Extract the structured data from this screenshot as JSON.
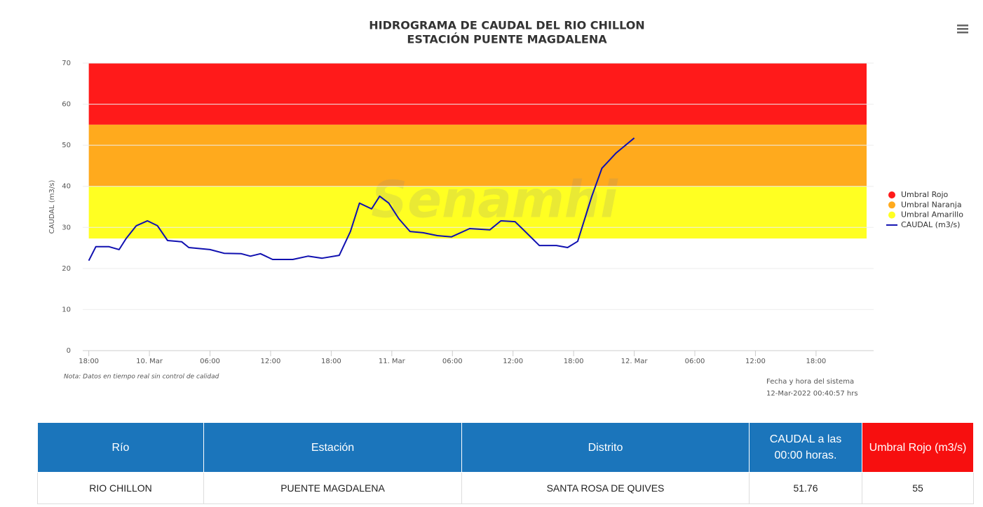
{
  "chart_data": {
    "type": "line",
    "title": [
      "HIDROGRAMA DE CAUDAL DEL RIO CHILLON",
      "ESTACIÓN PUENTE MAGDALENA"
    ],
    "y_label": "CAUDAL (m3/s)",
    "watermark": "Senamhi",
    "note": "Nota: Datos en tiempo real sin control de calidad",
    "timestamp_label": "Fecha y hora del sistema",
    "timestamp": "12-Mar-2022 00:40:57 hrs",
    "xlim": [
      -0.6,
      77.7
    ],
    "xticks": [
      {
        "value": 0,
        "label": "18:00"
      },
      {
        "value": 6,
        "label": "10. Mar"
      },
      {
        "value": 12,
        "label": "06:00"
      },
      {
        "value": 18,
        "label": "12:00"
      },
      {
        "value": 24,
        "label": "18:00"
      },
      {
        "value": 30,
        "label": "11. Mar"
      },
      {
        "value": 36,
        "label": "06:00"
      },
      {
        "value": 42,
        "label": "12:00"
      },
      {
        "value": 48,
        "label": "18:00"
      },
      {
        "value": 54,
        "label": "12. Mar"
      },
      {
        "value": 60,
        "label": "06:00"
      },
      {
        "value": 66,
        "label": "12:00"
      },
      {
        "value": 72,
        "label": "18:00"
      }
    ],
    "ylim": [
      0,
      70
    ],
    "yticks": [
      0,
      10,
      20,
      30,
      40,
      50,
      60,
      70
    ],
    "grid": true,
    "legend": "right",
    "bands": [
      {
        "name": "Umbral Rojo",
        "color": "#ff1a1a",
        "from": 55,
        "to": 70
      },
      {
        "name": "Umbral Naranja",
        "color": "#ffaa1d",
        "from": 40,
        "to": 55
      },
      {
        "name": "Umbral Amarillo",
        "color": "#ffff22",
        "from": 27.3,
        "to": 40
      }
    ],
    "series": [
      {
        "name": "CAUDAL (m3/s)",
        "color": "#1010b0",
        "x": [
          0,
          0.7,
          2,
          3,
          3.7,
          4.7,
          5.8,
          6.8,
          7.8,
          9.2,
          9.9,
          12,
          13.4,
          15.1,
          16,
          17,
          18.2,
          20.2,
          21.7,
          23.1,
          24.8,
          25.9,
          26.8,
          28,
          28.8,
          29.7,
          30.7,
          31.8,
          33.1,
          34.5,
          35.9,
          37.7,
          39.7,
          40.8,
          42.2,
          43.2,
          44.6,
          46.3,
          47.4,
          48.4,
          49.8,
          50.8,
          52.2,
          54
        ],
        "values": [
          21.9,
          25.3,
          25.3,
          24.6,
          27.3,
          30.4,
          31.6,
          30.4,
          26.8,
          26.5,
          25.1,
          24.6,
          23.7,
          23.6,
          23.0,
          23.6,
          22.2,
          22.2,
          23.0,
          22.5,
          23.2,
          29.0,
          35.9,
          34.5,
          37.6,
          35.9,
          32.1,
          29.0,
          28.7,
          28.0,
          27.7,
          29.7,
          29.4,
          31.6,
          31.4,
          29.0,
          25.6,
          25.6,
          25.1,
          26.6,
          37.6,
          44.4,
          48.1,
          51.76
        ]
      }
    ]
  },
  "table": {
    "headers": [
      "Río",
      "Estación",
      "Distrito",
      "CAUDAL a las 00:00 horas.",
      "Umbral Rojo (m3/s)"
    ],
    "rows": [
      [
        "RIO CHILLON",
        "PUENTE MAGDALENA",
        "SANTA ROSA DE QUIVES",
        51.76,
        55
      ]
    ]
  }
}
